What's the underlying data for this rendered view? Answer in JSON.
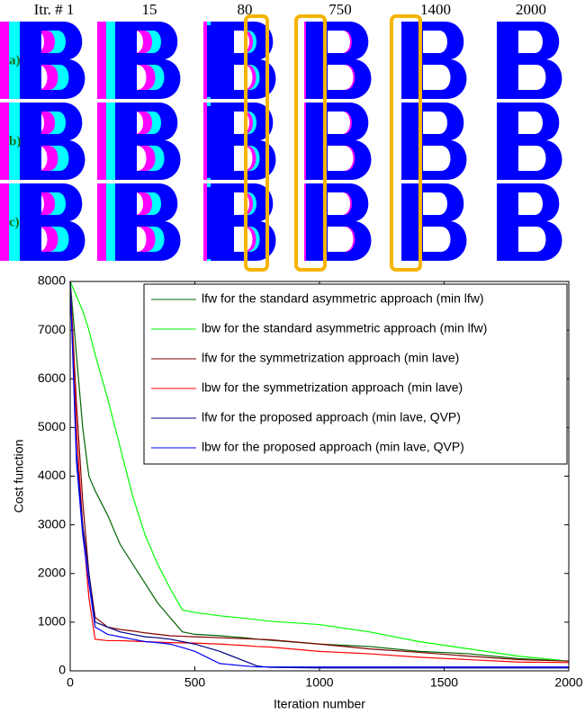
{
  "panel": {
    "columns": [
      "Itr. # 1",
      "15",
      "80",
      "750",
      "1400",
      "2000"
    ],
    "rows": [
      "a)",
      "b)",
      "c)"
    ]
  },
  "chart_data": {
    "type": "line",
    "xlabel": "Iteration number",
    "ylabel": "Cost function",
    "x": [
      0,
      25,
      50,
      75,
      100,
      150,
      200,
      250,
      300,
      350,
      400,
      450,
      500,
      600,
      700,
      750,
      800,
      1000,
      1200,
      1400,
      1600,
      1800,
      2000
    ],
    "series": [
      {
        "name": "lfw for the standard asymmetric approach (min lfw)",
        "color": "#006400",
        "values": [
          8000,
          6500,
          5000,
          4000,
          3700,
          3200,
          2600,
          2200,
          1800,
          1400,
          1100,
          800,
          750,
          720,
          680,
          650,
          630,
          550,
          500,
          400,
          350,
          250,
          200
        ]
      },
      {
        "name": "lbw for the standard asymmetric approach (min lfw)",
        "color": "#00ff00",
        "values": [
          8000,
          7700,
          7400,
          7000,
          6500,
          5600,
          4600,
          3600,
          2800,
          2200,
          1700,
          1250,
          1200,
          1130,
          1080,
          1050,
          1020,
          950,
          800,
          600,
          450,
          300,
          200
        ]
      },
      {
        "name": "lfw for the symmetrization approach (min lave)",
        "color": "#800000",
        "values": [
          8000,
          5500,
          3500,
          2000,
          1100,
          900,
          850,
          820,
          780,
          750,
          720,
          710,
          700,
          680,
          660,
          650,
          640,
          550,
          450,
          380,
          300,
          230,
          200
        ]
      },
      {
        "name": "lbw for the symmetrization approach (min lave)",
        "color": "#ff0000",
        "values": [
          8000,
          5000,
          3000,
          1500,
          650,
          620,
          620,
          610,
          600,
          590,
          580,
          575,
          570,
          550,
          520,
          500,
          490,
          400,
          350,
          280,
          230,
          180,
          170
        ]
      },
      {
        "name": "lfw for the proposed approach (min lave, QVP)",
        "color": "#000080",
        "values": [
          8000,
          4500,
          3000,
          2000,
          1000,
          900,
          800,
          750,
          700,
          680,
          650,
          600,
          550,
          400,
          200,
          100,
          70,
          60,
          60,
          60,
          60,
          60,
          60
        ]
      },
      {
        "name": "lbw for the proposed approach (min lave, QVP)",
        "color": "#0000ff",
        "values": [
          8000,
          4300,
          2800,
          1800,
          900,
          750,
          700,
          650,
          600,
          580,
          550,
          480,
          400,
          150,
          100,
          80,
          80,
          80,
          80,
          80,
          80,
          80,
          80
        ]
      }
    ],
    "xlim": [
      0,
      2000
    ],
    "ylim": [
      0,
      8000
    ],
    "xticks": [
      0,
      500,
      1000,
      1500,
      2000
    ],
    "yticks": [
      0,
      1000,
      2000,
      3000,
      4000,
      5000,
      6000,
      7000,
      8000
    ]
  }
}
